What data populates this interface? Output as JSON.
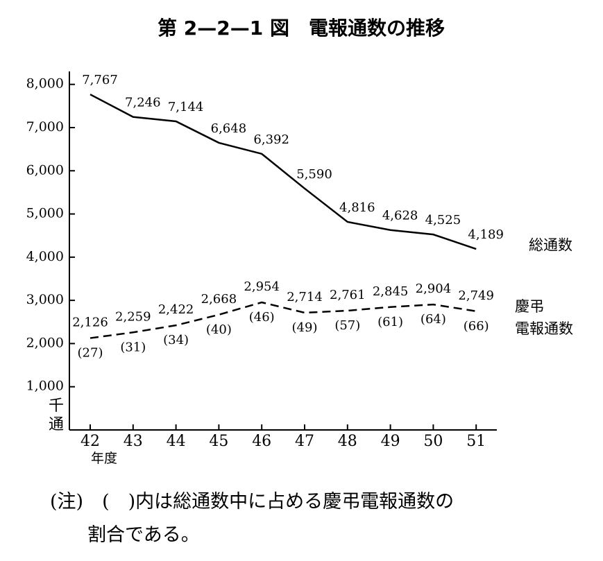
{
  "chart_data": {
    "type": "line",
    "title": "第 2—2—1 図　電報通数の推移",
    "y_label": "千通",
    "x_label": "年度",
    "categories": [
      "42",
      "43",
      "44",
      "45",
      "46",
      "47",
      "48",
      "49",
      "50",
      "51"
    ],
    "series": [
      {
        "name": "総通数",
        "color": "#000000",
        "dash": false,
        "values": [
          7767,
          7246,
          7144,
          6648,
          6392,
          5590,
          4816,
          4628,
          4525,
          4189
        ],
        "value_labels": [
          "7,767",
          "7,246",
          "7,144",
          "6,648",
          "6,392",
          "5,590",
          "4,816",
          "4,628",
          "4,525",
          "4,189"
        ]
      },
      {
        "name": "慶弔\n電報通数",
        "color": "#000000",
        "dash": true,
        "values": [
          2126,
          2259,
          2422,
          2668,
          2954,
          2714,
          2761,
          2845,
          2904,
          2749
        ],
        "value_labels": [
          "2,126",
          "2,259",
          "2,422",
          "2,668",
          "2,954",
          "2,714",
          "2,761",
          "2,845",
          "2,904",
          "2,749"
        ]
      }
    ],
    "shares": {
      "values": [
        27,
        31,
        34,
        40,
        46,
        49,
        57,
        61,
        64,
        66
      ],
      "value_labels": [
        "(27)",
        "(31)",
        "(34)",
        "(40)",
        "(46)",
        "(49)",
        "(57)",
        "(61)",
        "(64)",
        "(66)"
      ]
    },
    "ylim": [
      0,
      8300
    ],
    "yticks": [
      {
        "value": 1000,
        "label": "1,000"
      },
      {
        "value": 2000,
        "label": "2,000"
      },
      {
        "value": 3000,
        "label": "3,000"
      },
      {
        "value": 4000,
        "label": "4,000"
      },
      {
        "value": 5000,
        "label": "5,000"
      },
      {
        "value": 6000,
        "label": "6,000"
      },
      {
        "value": 7000,
        "label": "7,000"
      },
      {
        "value": 8000,
        "label": "8,000"
      }
    ],
    "grid": false,
    "note": "(注)　(　)内は総通数中に占める慶弔電報通数の\n　　割合である。"
  }
}
